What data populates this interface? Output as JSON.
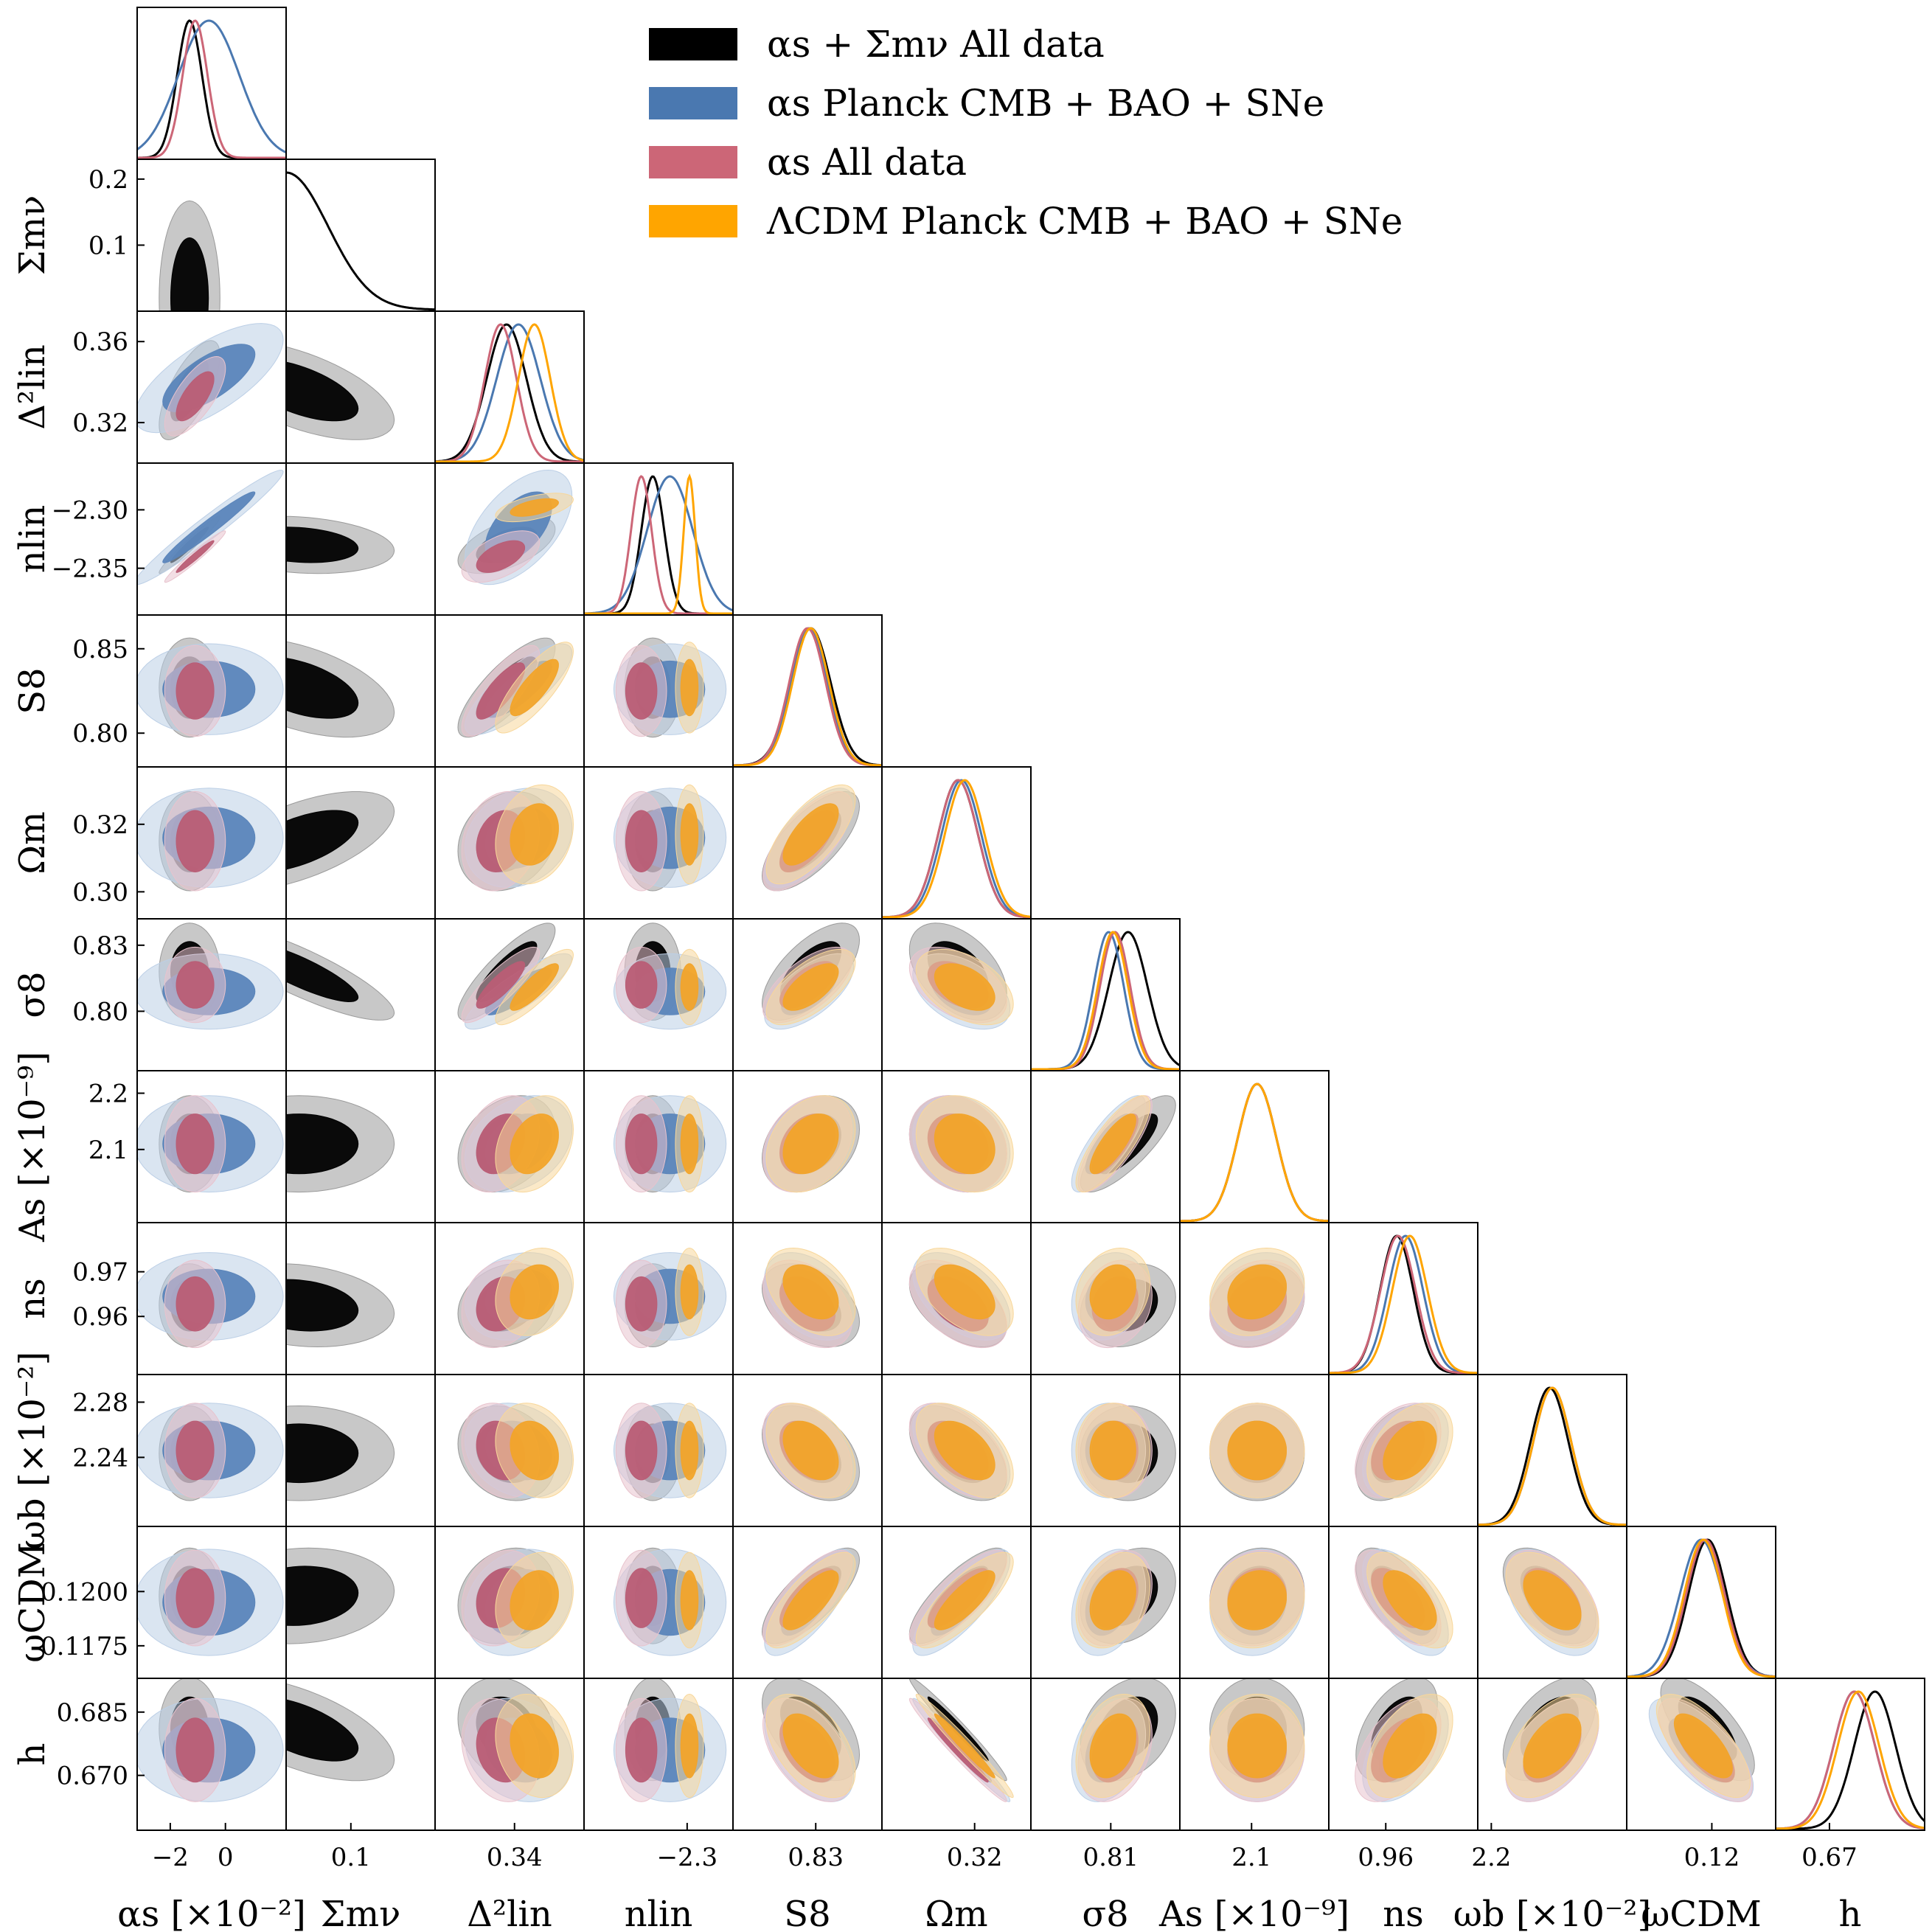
{
  "chart_data": {
    "type": "corner-plot",
    "title": "",
    "series": [
      {
        "id": "as_mnu_all",
        "name": "αs + Σmν All data",
        "color": "#000000",
        "fill1": "#000000",
        "fill2": "#9a9a9a"
      },
      {
        "id": "as_planck",
        "name": "αs Planck CMB + BAO + SNe",
        "color": "#4a78b0",
        "fill1": "#5b85ba",
        "fill2": "#bccfe6"
      },
      {
        "id": "as_all",
        "name": "αs All data",
        "color": "#cc6677",
        "fill1": "#b95d75",
        "fill2": "#e8c3cd"
      },
      {
        "id": "lcdm_planck",
        "name": "ΛCDM Planck CMB + BAO + SNe",
        "color": "#ffa500",
        "fill1": "#f2a42a",
        "fill2": "#f8d79a"
      }
    ],
    "parameters": [
      {
        "key": "alpha_s",
        "xlabel": "αs [×10⁻²]",
        "ylabel": "",
        "ticks": [
          -2,
          0
        ],
        "tick_labels": [
          "−2",
          "0"
        ],
        "range": [
          -3.2,
          2.2
        ]
      },
      {
        "key": "sum_mnu",
        "xlabel": "Σmν",
        "ylabel": "Σmν",
        "ticks": [
          0.1
        ],
        "tick_labels": [
          "0.1"
        ],
        "ylabel_ticks": [
          0.1,
          0.2
        ],
        "ylabel_tick_labels": [
          "0.1",
          "0.2"
        ],
        "range": [
          0.0,
          0.23
        ]
      },
      {
        "key": "delta2_lin",
        "xlabel": "Δ²lin",
        "ylabel": "Δ²lin",
        "ticks": [
          0.34
        ],
        "tick_labels": [
          "0.34"
        ],
        "ylabel_ticks": [
          0.32,
          0.36
        ],
        "ylabel_tick_labels": [
          "0.32",
          "0.36"
        ],
        "range": [
          0.3,
          0.375
        ]
      },
      {
        "key": "n_lin",
        "xlabel": "nlin",
        "ylabel": "nlin",
        "ticks": [
          -2.3
        ],
        "tick_labels": [
          "−2.3"
        ],
        "ylabel_ticks": [
          -2.35,
          -2.3
        ],
        "ylabel_tick_labels": [
          "−2.35",
          "−2.30"
        ],
        "range": [
          -2.39,
          -2.26
        ]
      },
      {
        "key": "S8",
        "xlabel": "S8",
        "ylabel": "S8",
        "ticks": [
          0.83
        ],
        "tick_labels": [
          "0.83"
        ],
        "ylabel_ticks": [
          0.8,
          0.85
        ],
        "ylabel_tick_labels": [
          "0.80",
          "0.85"
        ],
        "range": [
          0.78,
          0.87
        ]
      },
      {
        "key": "Omega_m",
        "xlabel": "Ωm",
        "ylabel": "Ωm",
        "ticks": [
          0.32
        ],
        "tick_labels": [
          "0.32"
        ],
        "ylabel_ticks": [
          0.3,
          0.32
        ],
        "ylabel_tick_labels": [
          "0.30",
          "0.32"
        ],
        "range": [
          0.292,
          0.337
        ]
      },
      {
        "key": "sigma8",
        "xlabel": "σ8",
        "ylabel": "σ8",
        "ticks": [
          0.81
        ],
        "tick_labels": [
          "0.81"
        ],
        "ylabel_ticks": [
          0.8,
          0.83
        ],
        "ylabel_tick_labels": [
          "0.80",
          "0.83"
        ],
        "range": [
          0.773,
          0.842
        ]
      },
      {
        "key": "A_s",
        "xlabel": "As [×10⁻⁹]",
        "ylabel": "As [×10⁻⁹]",
        "ticks": [
          2.1
        ],
        "tick_labels": [
          "2.1"
        ],
        "ylabel_ticks": [
          2.1,
          2.2
        ],
        "ylabel_tick_labels": [
          "2.1",
          "2.2"
        ],
        "range": [
          1.97,
          2.24
        ]
      },
      {
        "key": "n_s",
        "xlabel": "ns",
        "ylabel": "ns",
        "ticks": [
          0.96
        ],
        "tick_labels": [
          "0.96"
        ],
        "ylabel_ticks": [
          0.96,
          0.97
        ],
        "ylabel_tick_labels": [
          "0.96",
          "0.97"
        ],
        "range": [
          0.947,
          0.981
        ]
      },
      {
        "key": "omega_b",
        "xlabel": "ωb [×10⁻²]",
        "ylabel": "ωb [×10⁻²]",
        "ticks": [
          2.2
        ],
        "tick_labels": [
          "2.2"
        ],
        "ylabel_ticks": [
          2.24,
          2.28
        ],
        "ylabel_tick_labels": [
          "2.24",
          "2.28"
        ],
        "range": [
          2.19,
          2.3
        ]
      },
      {
        "key": "omega_cdm",
        "xlabel": "ωCDM",
        "ylabel": "ωCDM",
        "ticks": [
          0.12
        ],
        "tick_labels": [
          "0.12"
        ],
        "ylabel_ticks": [
          0.1175,
          0.12
        ],
        "ylabel_tick_labels": [
          "0.1175",
          "0.1200"
        ],
        "range": [
          0.116,
          0.123
        ]
      },
      {
        "key": "h",
        "xlabel": "h",
        "ylabel": "h",
        "ticks": [
          0.67
        ],
        "tick_labels": [
          "0.67"
        ],
        "ylabel_ticks": [
          0.67,
          0.685
        ],
        "ylabel_tick_labels": [
          "0.670",
          "0.685"
        ],
        "range": [
          0.657,
          0.693
        ]
      }
    ],
    "means": {
      "as_mnu_all": [
        -1.3,
        0.02,
        0.336,
        -2.33,
        0.827,
        0.315,
        0.818,
        2.11,
        0.9625,
        2.243,
        0.1198,
        0.681
      ],
      "as_planck": [
        -0.6,
        null,
        0.342,
        -2.315,
        0.826,
        0.316,
        0.809,
        2.11,
        0.9645,
        2.245,
        0.1195,
        0.676
      ],
      "as_all": [
        -1.1,
        null,
        0.333,
        -2.34,
        0.825,
        0.315,
        0.812,
        2.11,
        0.9628,
        2.245,
        0.1197,
        0.676
      ],
      "lcdm_planck": [
        null,
        null,
        0.35,
        -2.298,
        0.827,
        0.317,
        0.811,
        2.11,
        0.9655,
        2.245,
        0.1196,
        0.677
      ]
    },
    "sigmas": {
      "as_mnu_all": [
        0.45,
        0.06,
        0.01,
        0.01,
        0.012,
        0.006,
        0.009,
        0.035,
        0.0038,
        0.014,
        0.0009,
        0.005
      ],
      "as_planck": [
        1.1,
        null,
        0.011,
        0.02,
        0.011,
        0.006,
        0.007,
        0.035,
        0.004,
        0.014,
        0.001,
        0.005
      ],
      "as_all": [
        0.45,
        null,
        0.008,
        0.009,
        0.011,
        0.006,
        0.007,
        0.035,
        0.004,
        0.014,
        0.0009,
        0.005
      ],
      "lcdm_planck": [
        null,
        null,
        0.008,
        0.005,
        0.011,
        0.006,
        0.007,
        0.035,
        0.004,
        0.014,
        0.0009,
        0.005
      ]
    },
    "grid": false,
    "legend_position": "top-right"
  }
}
